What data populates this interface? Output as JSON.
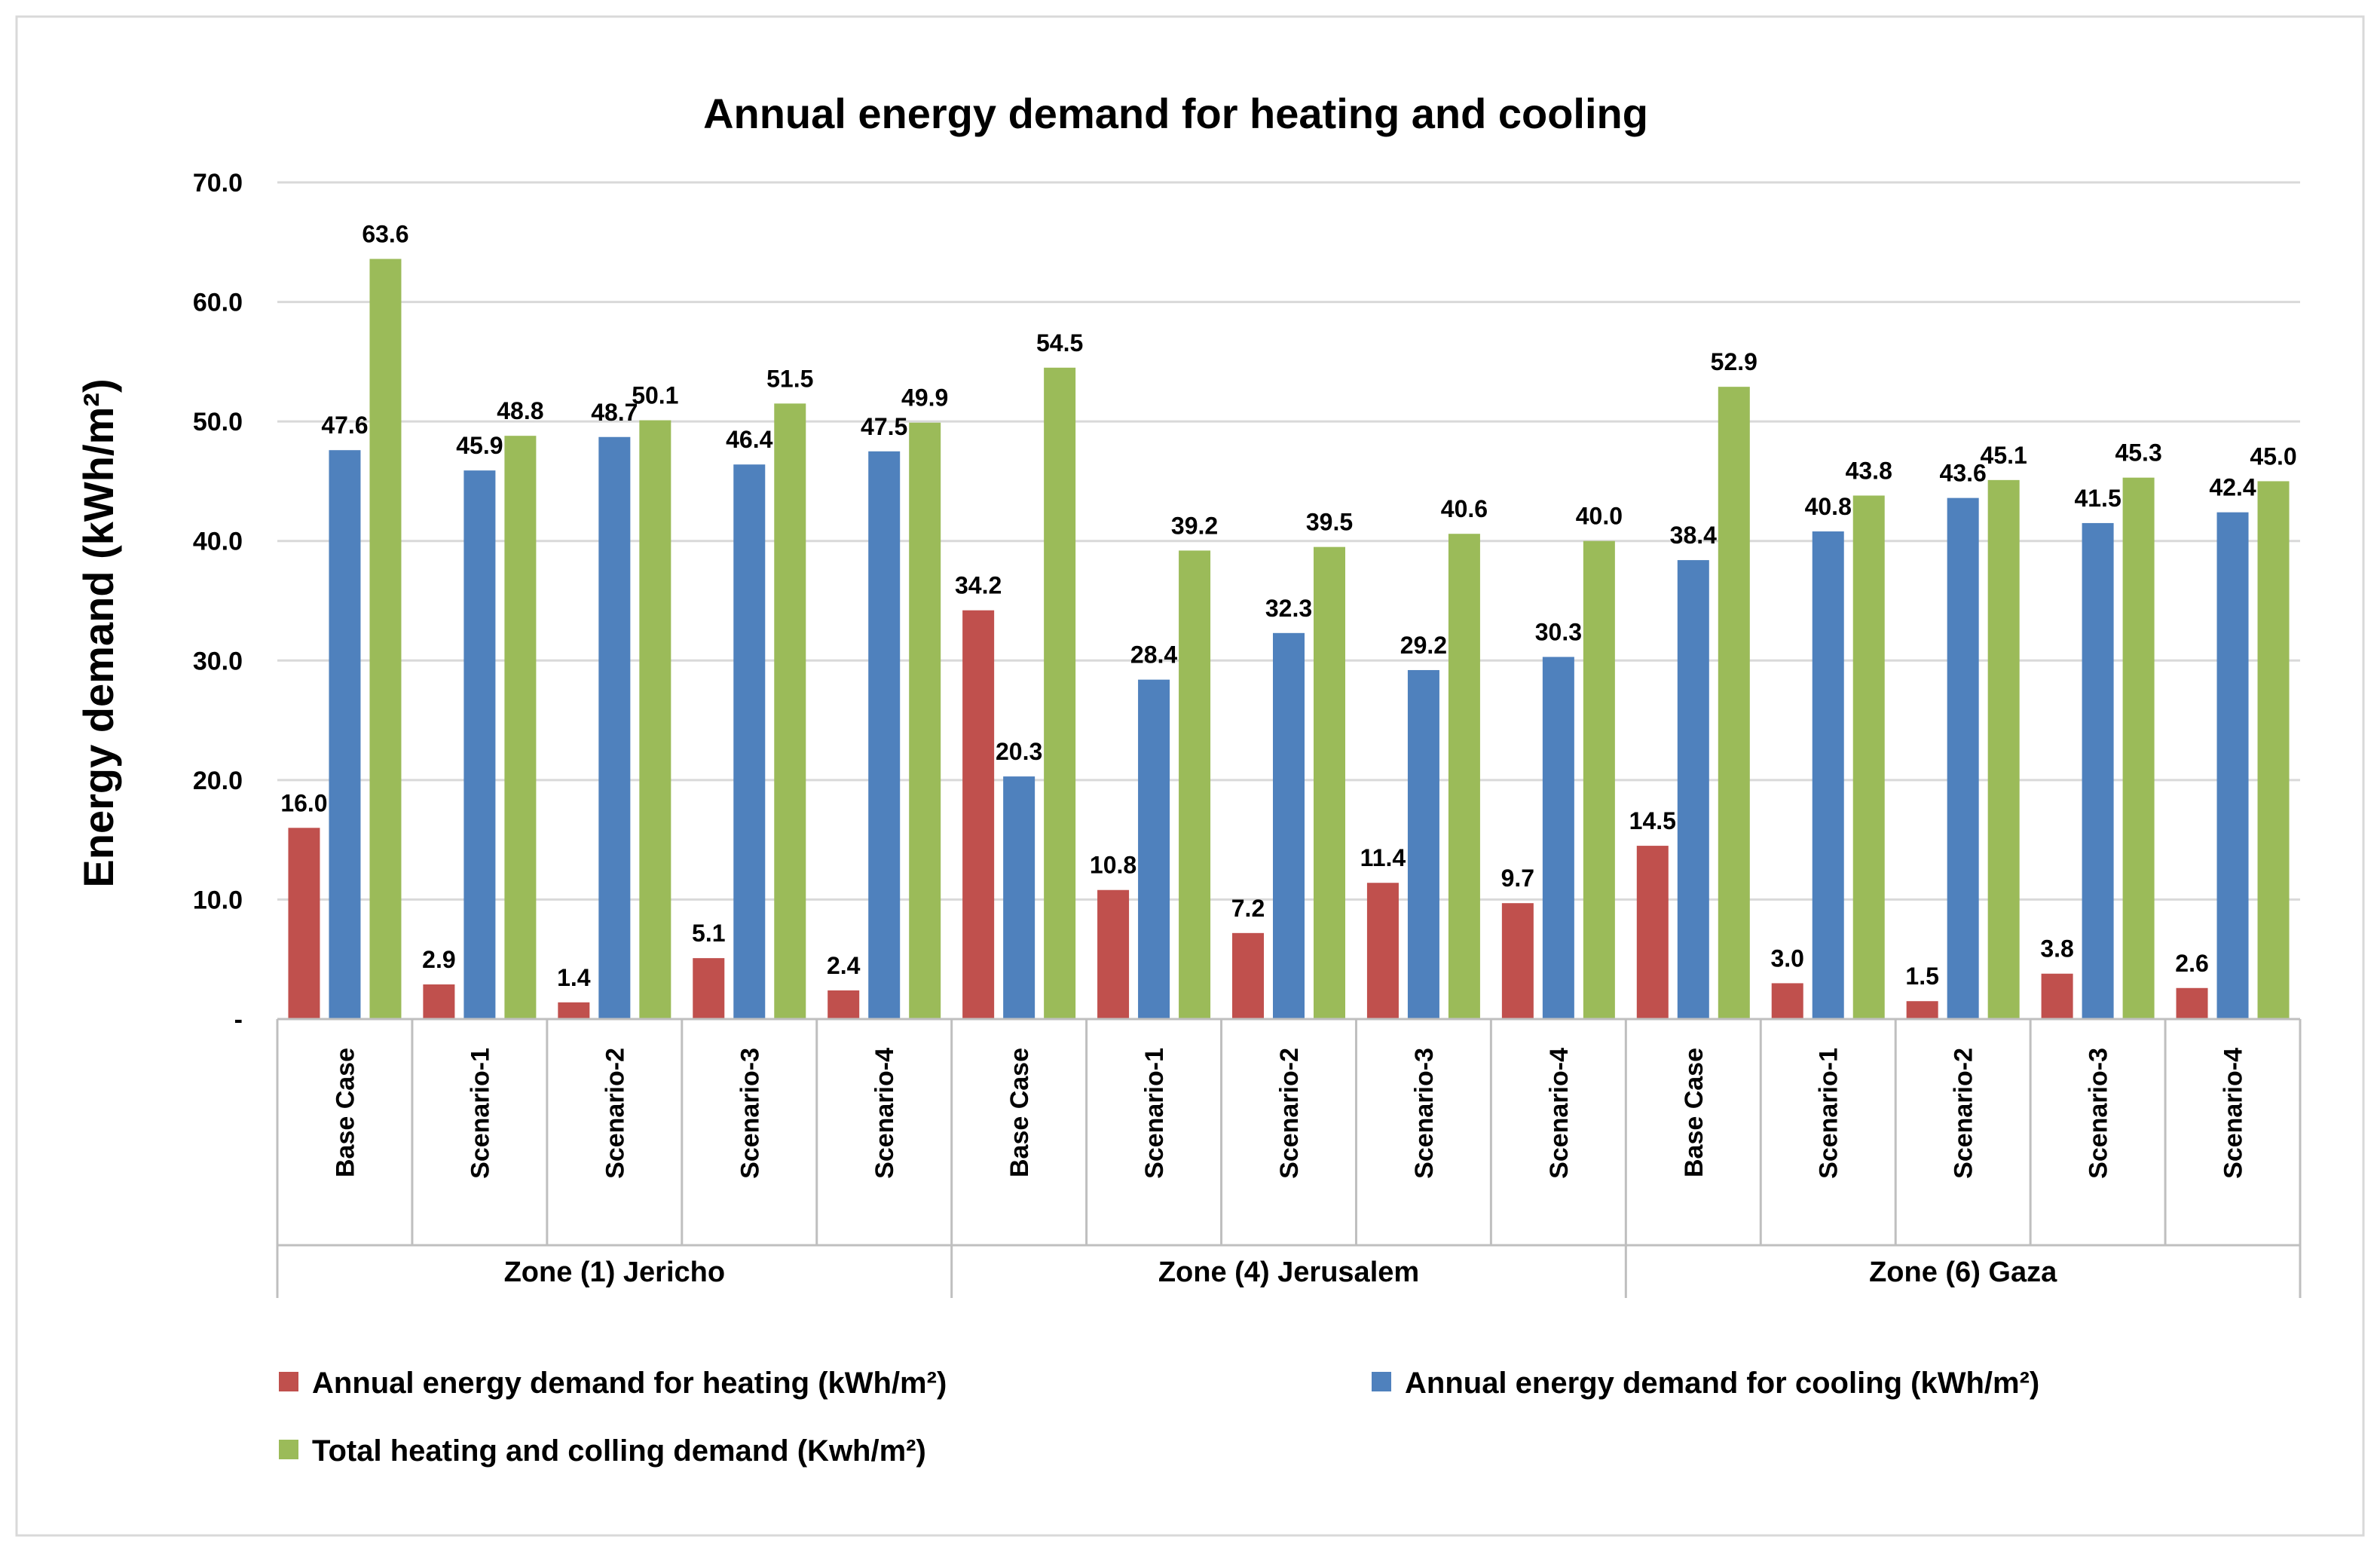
{
  "chart_data": {
    "type": "bar",
    "title": "Annual energy demand for heating and cooling",
    "xlabel": "",
    "ylabel": "Energy demand (kWh/m²)",
    "ylim": [
      0,
      70
    ],
    "yticks": [
      {
        "value": 0,
        "label": "-"
      },
      {
        "value": 10,
        "label": "10.0"
      },
      {
        "value": 20,
        "label": "20.0"
      },
      {
        "value": 30,
        "label": "30.0"
      },
      {
        "value": 40,
        "label": "40.0"
      },
      {
        "value": 50,
        "label": "50.0"
      },
      {
        "value": 60,
        "label": "60.0"
      },
      {
        "value": 70,
        "label": "70.0"
      }
    ],
    "grid": true,
    "legend_position": "bottom",
    "groups": [
      {
        "name": "Zone (1) Jericho",
        "categories": [
          "Base Case",
          "Scenario-1",
          "Scenario-2",
          "Scenario-3",
          "Scenario-4"
        ]
      },
      {
        "name": "Zone (4) Jerusalem",
        "categories": [
          "Base Case",
          "Scenario-1",
          "Scenario-2",
          "Scenario-3",
          "Scenario-4"
        ]
      },
      {
        "name": "Zone (6) Gaza",
        "categories": [
          "Base Case",
          "Scenario-1",
          "Scenario-2",
          "Scenario-3",
          "Scenario-4"
        ]
      }
    ],
    "series": [
      {
        "name": "Annual energy demand for heating (kWh/m²)",
        "color": "#c0504d",
        "values": [
          16.0,
          2.9,
          1.4,
          5.1,
          2.4,
          34.2,
          10.8,
          7.2,
          11.4,
          9.7,
          14.5,
          3.0,
          1.5,
          3.8,
          2.6
        ],
        "labels": [
          "16.0",
          "2.9",
          "1.4",
          "5.1",
          "2.4",
          "34.2",
          "10.8",
          "7.2",
          "11.4",
          "9.7",
          "14.5",
          "3.0",
          "1.5",
          "3.8",
          "2.6"
        ]
      },
      {
        "name": "Annual energy demand for cooling (kWh/m²)",
        "color": "#4f81bd",
        "values": [
          47.6,
          45.9,
          48.7,
          46.4,
          47.5,
          20.3,
          28.4,
          32.3,
          29.2,
          30.3,
          38.4,
          40.8,
          43.6,
          41.5,
          42.4
        ],
        "labels": [
          "47.6",
          "45.9",
          "48.7",
          "46.4",
          "47.5",
          "20.3",
          "28.4",
          "32.3",
          "29.2",
          "30.3",
          "38.4",
          "40.8",
          "43.6",
          "41.5",
          "42.4"
        ]
      },
      {
        "name": "Total heating and colling demand (Kwh/m²)",
        "color": "#9bbb59",
        "values": [
          63.6,
          48.8,
          50.1,
          51.5,
          49.9,
          54.5,
          39.2,
          39.5,
          40.6,
          40.0,
          52.9,
          43.8,
          45.1,
          45.3,
          45.0
        ],
        "labels": [
          "63.6",
          "48.8",
          "50.1",
          "51.5",
          "49.9",
          "54.5",
          "39.2",
          "39.5",
          "40.6",
          "40.0",
          "52.9",
          "43.8",
          "45.1",
          "45.3",
          "45.0"
        ]
      }
    ]
  }
}
